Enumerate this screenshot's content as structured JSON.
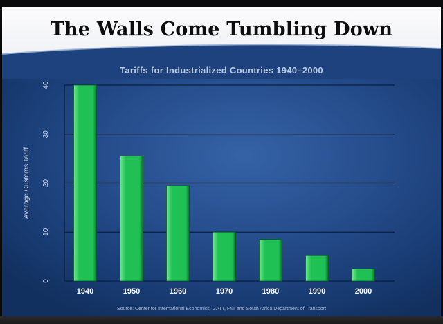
{
  "slide": {
    "title": "The Walls Come Tumbling Down"
  },
  "chart_data": {
    "type": "bar",
    "title": "Tariffs for Industrialized Countries 1940–2000",
    "xlabel": "",
    "ylabel": "Average Customs Tariff",
    "categories": [
      "1940",
      "1950",
      "1960",
      "1970",
      "1980",
      "1990",
      "2000"
    ],
    "values": [
      40,
      25.5,
      19.5,
      10,
      8.5,
      5.2,
      2.5
    ],
    "ylim": [
      0,
      40
    ],
    "yticks": [
      "0",
      "10",
      "20",
      "30",
      "40"
    ],
    "grid": true,
    "legend": "none",
    "source": "Source: Center for International Economics, GATT, FMI and South Africa Department of Transport",
    "colors": {
      "bar": "#1fc054",
      "bar_light": "#6fe890",
      "bar_dark": "#0b6e2a",
      "grid": "#0c1f3f",
      "text": "#c7d4ea"
    }
  }
}
